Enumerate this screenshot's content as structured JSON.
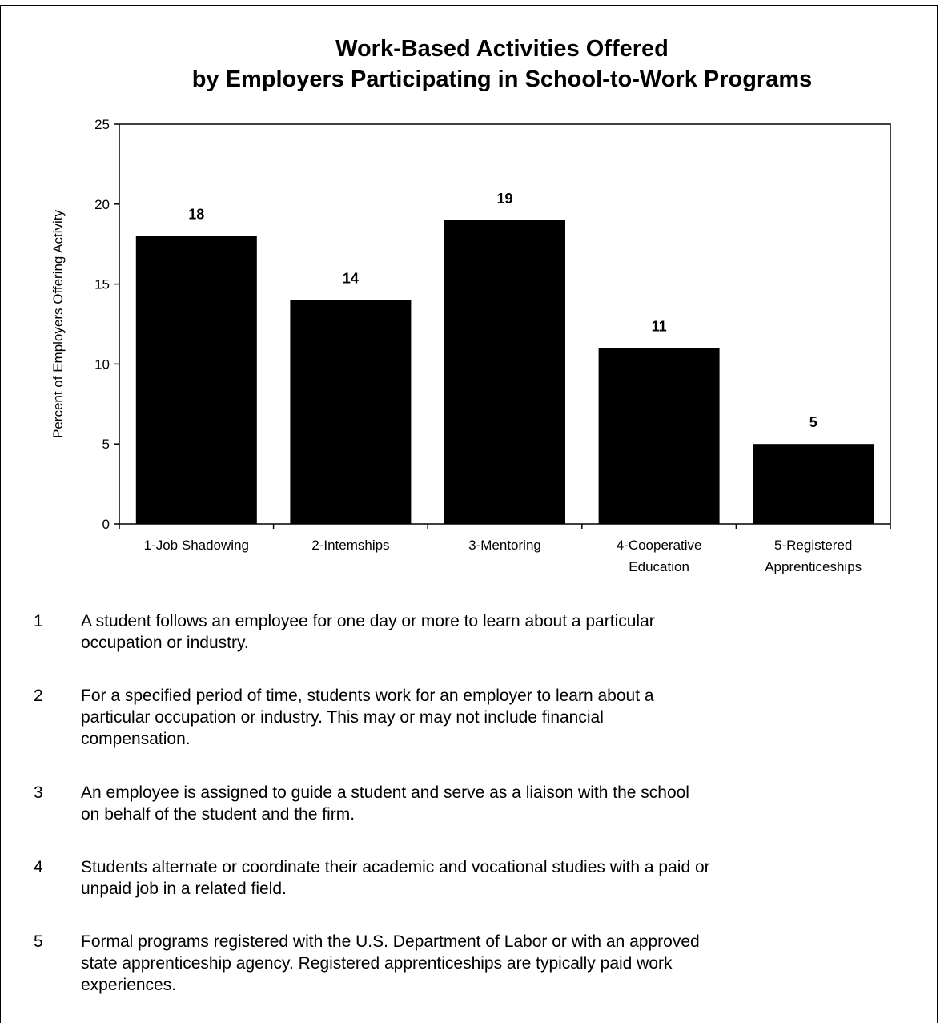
{
  "chart_data": {
    "type": "bar",
    "title": "Work-Based Activities Offered\nby Employers Participating in School-to-Work Programs",
    "title_lines": [
      "Work-Based Activities Offered",
      "by Employers Participating in School-to-Work Programs"
    ],
    "ylabel": "Percent of Employers Offering Activity",
    "xlabel": "",
    "ylim": [
      0,
      25
    ],
    "yticks": [
      0,
      5,
      10,
      15,
      20,
      25
    ],
    "categories": [
      "1-Job Shadowing",
      "2-Internships",
      "3-Mentoring",
      "4-Cooperative Education",
      "5-Registered Apprenticeships"
    ],
    "category_lines": [
      [
        "1-Job Shadowing"
      ],
      [
        "2-Intemships"
      ],
      [
        "3-Mentoring"
      ],
      [
        "4-Cooperative",
        "Education"
      ],
      [
        "5-Registered",
        "Apprenticeships"
      ]
    ],
    "values": [
      18,
      14,
      19,
      11,
      5
    ],
    "data_labels": [
      "18",
      "14",
      "19",
      "11",
      "5"
    ],
    "bar_color": "#000000",
    "grid": false,
    "legend": "none"
  },
  "notes": [
    {
      "num": "1",
      "lines": [
        "A student follows an employee for one day or more to learn about a particular",
        "occupation or industry."
      ]
    },
    {
      "num": "2",
      "lines": [
        "For a specified period of time, students work for an employer to learn about a",
        "particular occupation or industry.  This may or may not include financial",
        "compensation."
      ]
    },
    {
      "num": "3",
      "lines": [
        "An employee is assigned to guide a student and serve as a liaison with the school",
        "on behalf of the student and the firm."
      ]
    },
    {
      "num": "4",
      "lines": [
        "Students alternate or coordinate their academic and vocational studies with a paid or",
        "unpaid job in a related field."
      ]
    },
    {
      "num": "5",
      "lines": [
        "Formal programs registered with the U.S. Department of Labor or with an approved",
        "state apprenticeship agency. Registered apprenticeships are typically paid work",
        "experiences."
      ]
    }
  ]
}
